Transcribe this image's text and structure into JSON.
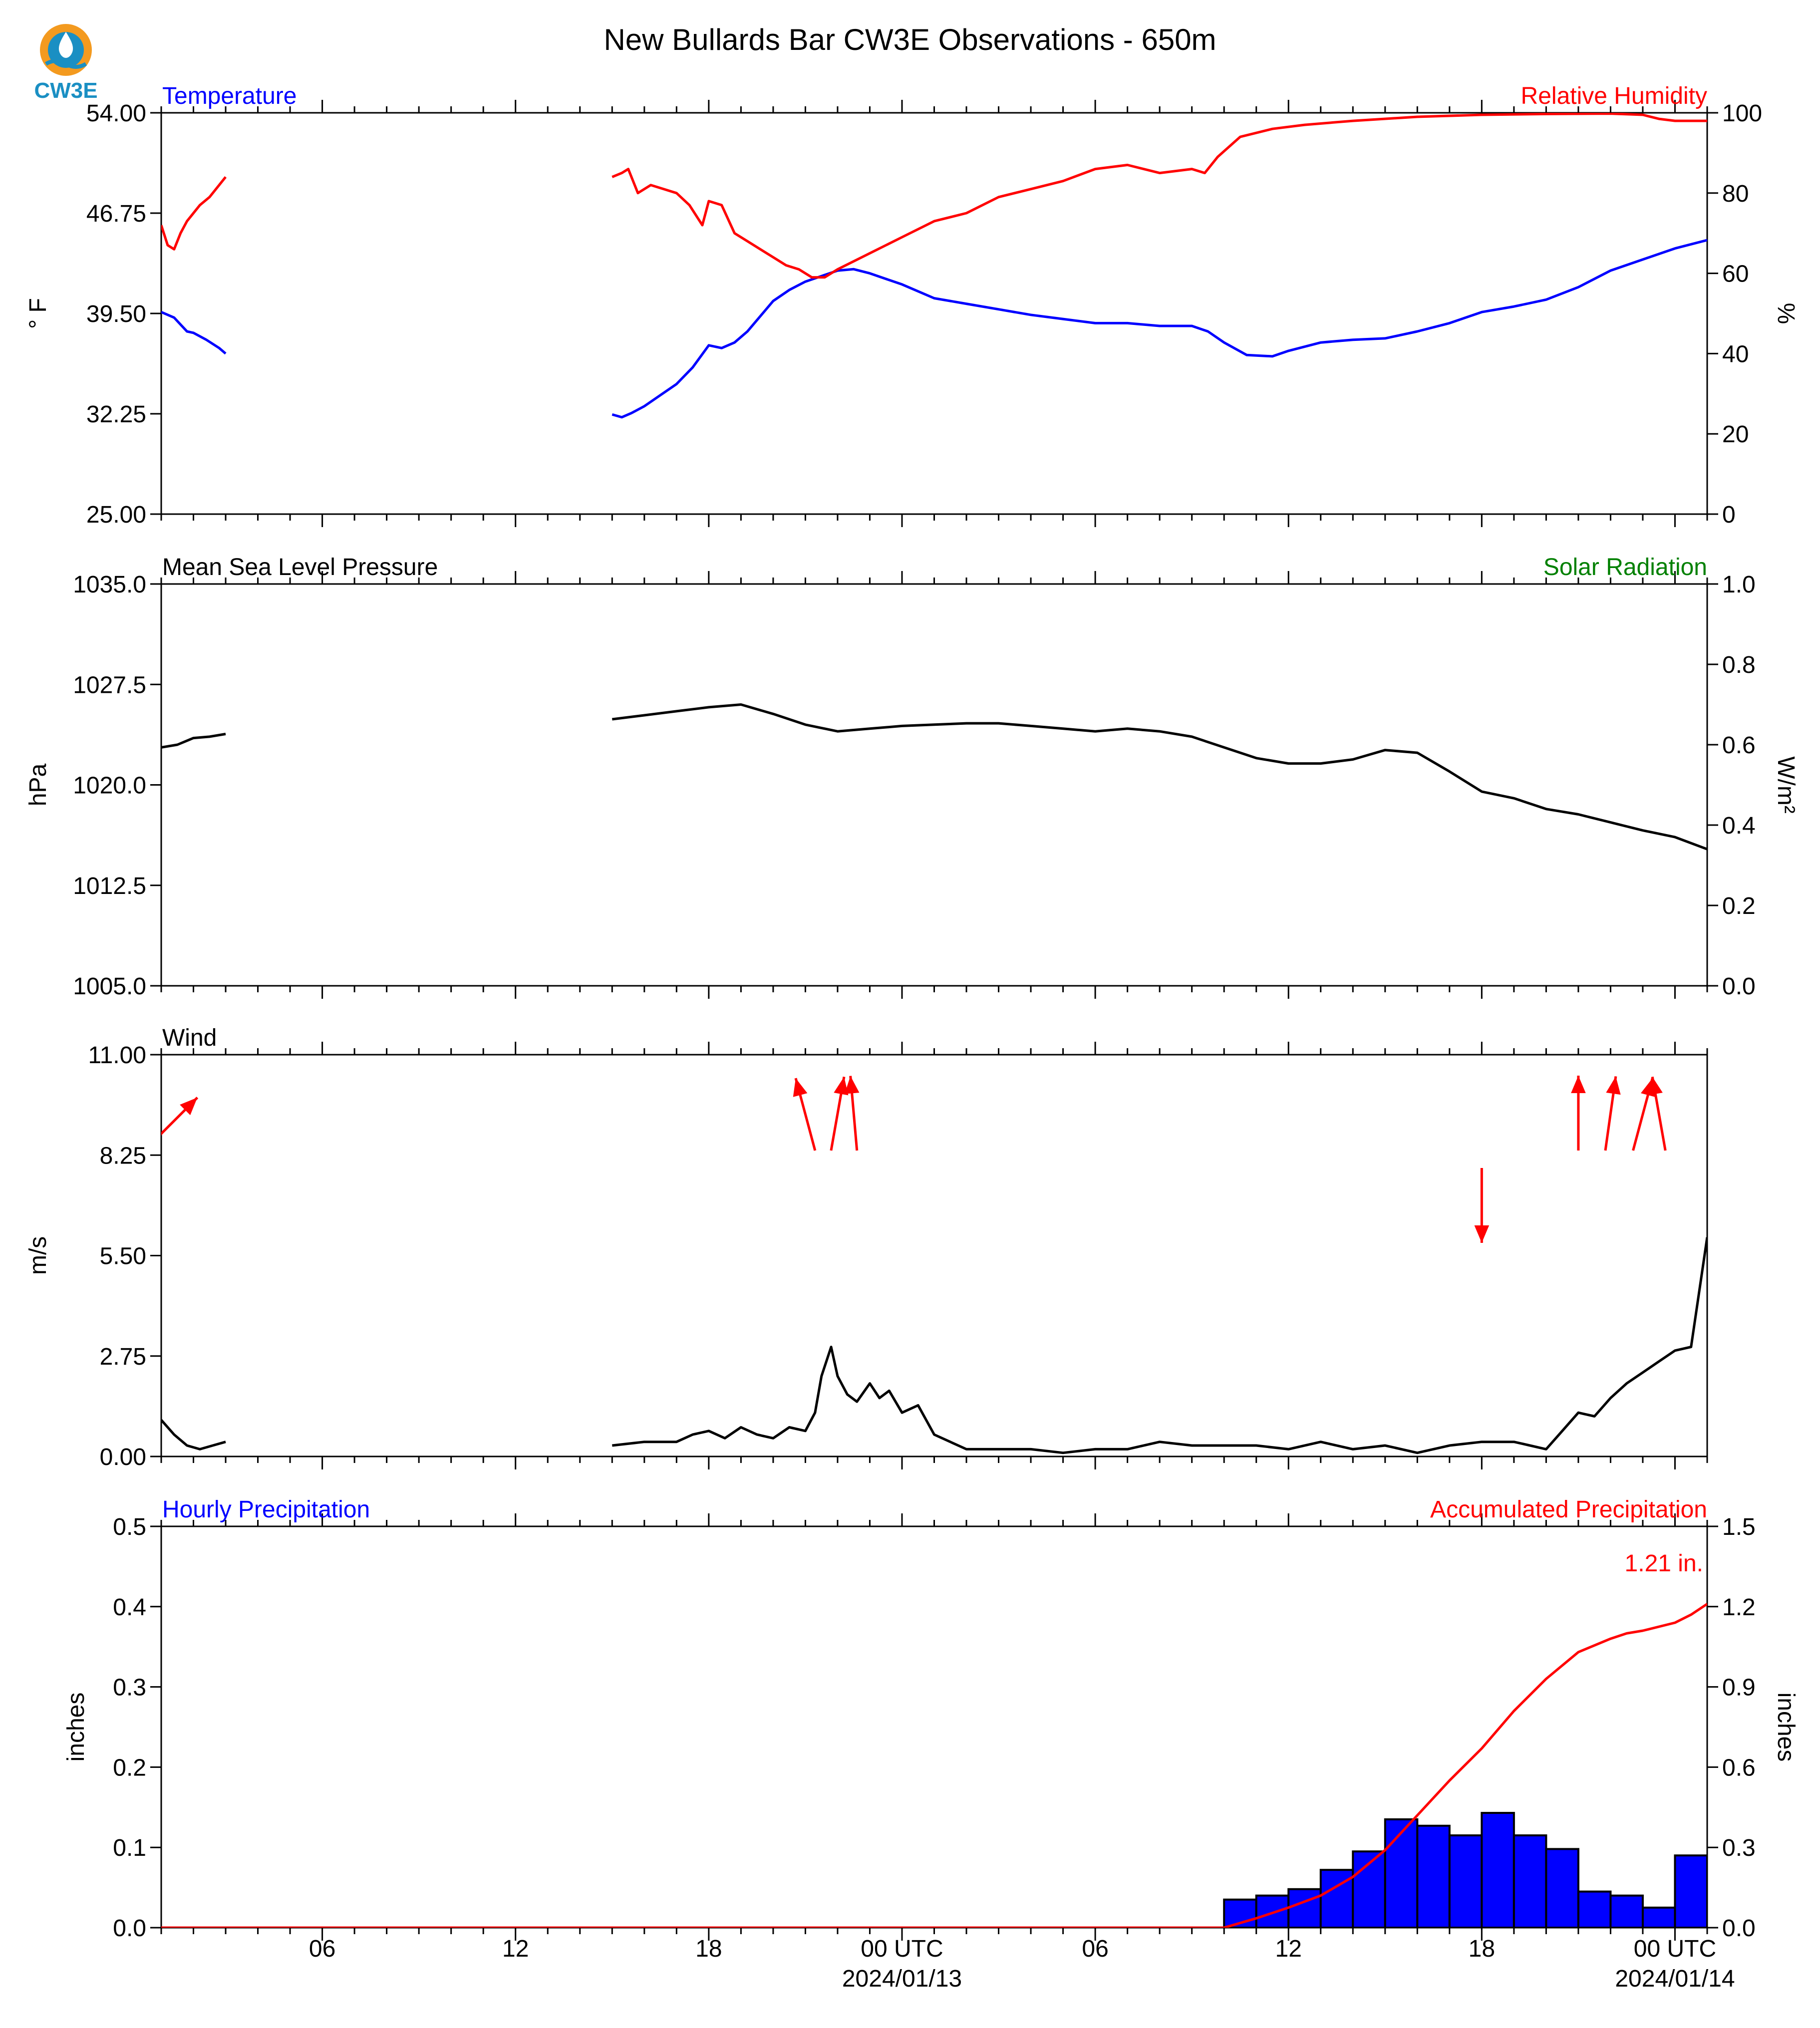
{
  "logo_text": "CW3E",
  "title": "New Bullards Bar CW3E Observations - 650m",
  "time_axis": {
    "ticks": [
      "06",
      "12",
      "18",
      "00 UTC",
      "06",
      "12",
      "18",
      "00 UTC"
    ],
    "dates": [
      "2024/01/13",
      "2024/01/14"
    ]
  },
  "chart_data": [
    {
      "type": "line",
      "panel": "temperature-humidity",
      "left_label": "Temperature",
      "right_label": "Relative Humidity",
      "ylabel": "° F",
      "ylabel_right": "%",
      "ylim": [
        25,
        54
      ],
      "ylim_right": [
        0,
        100
      ],
      "yticks": [
        "54.00",
        "46.75",
        "39.50",
        "32.25",
        "25.00"
      ],
      "yticks_right": [
        "100",
        "80",
        "60",
        "40",
        "20",
        "0"
      ],
      "x_unit": "hours since 00 UTC 2024/01/12",
      "xlim": [
        1,
        49
      ],
      "series": [
        {
          "name": "Temperature",
          "axis": "left",
          "color": "#0000ff",
          "x": [
            1.0,
            1.4,
            1.6,
            1.8,
            2.0,
            2.4,
            2.8,
            3.0,
            15.0,
            15.3,
            15.6,
            16.0,
            16.5,
            17.0,
            17.5,
            18.0,
            18.4,
            18.8,
            19.2,
            19.6,
            20.0,
            20.5,
            21.0,
            21.5,
            22.0,
            22.5,
            23.0,
            23.5,
            24.0,
            25.0,
            26.0,
            27.0,
            28.0,
            29.0,
            30.0,
            31.0,
            32.0,
            33.0,
            33.5,
            34.0,
            34.7,
            35.5,
            36.0,
            37.0,
            38.0,
            39.0,
            40.0,
            41.0,
            42.0,
            43.0,
            44.0,
            45.0,
            46.0,
            47.0,
            48.0,
            49.0
          ],
          "y": [
            39.6,
            39.2,
            38.7,
            38.2,
            38.1,
            37.6,
            37.0,
            36.6,
            32.2,
            32.0,
            32.3,
            32.8,
            33.6,
            34.4,
            35.6,
            37.2,
            37.0,
            37.4,
            38.2,
            39.3,
            40.4,
            41.2,
            41.8,
            42.2,
            42.6,
            42.7,
            42.4,
            42.0,
            41.6,
            40.6,
            40.2,
            39.8,
            39.4,
            39.1,
            38.8,
            38.8,
            38.6,
            38.6,
            38.2,
            37.4,
            36.5,
            36.4,
            36.8,
            37.4,
            37.6,
            37.7,
            38.2,
            38.8,
            39.6,
            40.0,
            40.5,
            41.4,
            42.6,
            43.4,
            44.2,
            44.8
          ]
        },
        {
          "name": "Relative Humidity",
          "axis": "right",
          "color": "#ff0000",
          "x": [
            1.0,
            1.2,
            1.4,
            1.6,
            1.8,
            2.0,
            2.2,
            2.5,
            2.8,
            3.0,
            15.0,
            15.3,
            15.5,
            15.8,
            16.2,
            16.6,
            17.0,
            17.4,
            17.8,
            18.0,
            18.4,
            18.8,
            19.2,
            19.6,
            20.0,
            20.4,
            20.8,
            21.2,
            21.6,
            22.0,
            22.5,
            23.0,
            23.5,
            24.0,
            25.0,
            26.0,
            27.0,
            28.0,
            29.0,
            30.0,
            31.0,
            32.0,
            33.0,
            33.4,
            33.8,
            34.5,
            35.5,
            36.5,
            38.0,
            40.0,
            42.0,
            44.0,
            46.0,
            47.0,
            47.5,
            48.0,
            49.0
          ],
          "y": [
            72.0,
            67.0,
            66.0,
            70.0,
            73.0,
            75.0,
            77.0,
            79.0,
            82.0,
            84.0,
            84.0,
            85.0,
            86.0,
            80.0,
            82.0,
            81.0,
            80.0,
            77.0,
            72.0,
            78.0,
            77.0,
            70.0,
            68.0,
            66.0,
            64.0,
            62.0,
            61.0,
            59.0,
            59.0,
            61.0,
            63.0,
            65.0,
            67.0,
            69.0,
            73.0,
            75.0,
            79.0,
            81.0,
            83.0,
            86.0,
            87.0,
            85.0,
            86.0,
            85.0,
            89.0,
            94.0,
            96.0,
            97.0,
            98.0,
            99.0,
            99.5,
            99.7,
            99.8,
            99.5,
            98.5,
            98.0,
            98.0
          ]
        }
      ]
    },
    {
      "type": "line",
      "panel": "pressure-solar",
      "left_label": "Mean Sea Level Pressure",
      "right_label": "Solar Radiation",
      "ylabel": "hPa",
      "ylabel_right": "W/m²",
      "ylim": [
        1005,
        1035
      ],
      "ylim_right": [
        0,
        1
      ],
      "yticks": [
        "1035.0",
        "1027.5",
        "1020.0",
        "1012.5",
        "1005.0"
      ],
      "yticks_right": [
        "1.0",
        "0.8",
        "0.6",
        "0.4",
        "0.2",
        "0.0"
      ],
      "x_unit": "hours since 00 UTC 2024/01/12",
      "xlim": [
        1,
        49
      ],
      "series": [
        {
          "name": "Mean Sea Level Pressure",
          "axis": "left",
          "color": "#000000",
          "x": [
            1.0,
            1.5,
            2.0,
            2.5,
            3.0,
            15.0,
            16.0,
            17.0,
            18.0,
            19.0,
            20.0,
            21.0,
            22.0,
            23.0,
            24.0,
            25.0,
            26.0,
            27.0,
            28.0,
            29.0,
            30.0,
            31.0,
            32.0,
            33.0,
            34.0,
            35.0,
            36.0,
            37.0,
            38.0,
            39.0,
            40.0,
            41.0,
            42.0,
            43.0,
            44.0,
            45.0,
            46.0,
            47.0,
            48.0,
            49.0
          ],
          "y": [
            1022.8,
            1023.0,
            1023.5,
            1023.6,
            1023.8,
            1024.9,
            1025.2,
            1025.5,
            1025.8,
            1026.0,
            1025.3,
            1024.5,
            1024.0,
            1024.2,
            1024.4,
            1024.5,
            1024.6,
            1024.6,
            1024.4,
            1024.2,
            1024.0,
            1024.2,
            1024.0,
            1023.6,
            1022.8,
            1022.0,
            1021.6,
            1021.6,
            1021.9,
            1022.6,
            1022.4,
            1021.0,
            1019.5,
            1019.0,
            1018.2,
            1017.8,
            1017.2,
            1016.6,
            1016.1,
            1015.2
          ]
        }
      ]
    },
    {
      "type": "line",
      "panel": "wind",
      "left_label": "Wind",
      "ylabel": "m/s",
      "ylim": [
        0,
        11
      ],
      "yticks": [
        "11.00",
        "8.25",
        "5.50",
        "2.75",
        "0.00"
      ],
      "x_unit": "hours since 00 UTC 2024/01/12",
      "xlim": [
        1,
        49
      ],
      "series": [
        {
          "name": "Wind",
          "axis": "left",
          "color": "#000000",
          "x": [
            1.0,
            1.4,
            1.8,
            2.2,
            2.6,
            3.0,
            15.0,
            16.0,
            17.0,
            17.5,
            18.0,
            18.5,
            19.0,
            19.5,
            20.0,
            20.5,
            21.0,
            21.3,
            21.5,
            21.8,
            22.0,
            22.3,
            22.6,
            23.0,
            23.3,
            23.6,
            24.0,
            24.5,
            25.0,
            26.0,
            27.0,
            28.0,
            29.0,
            30.0,
            31.0,
            32.0,
            33.0,
            34.0,
            35.0,
            36.0,
            37.0,
            38.0,
            39.0,
            40.0,
            41.0,
            42.0,
            43.0,
            43.5,
            44.0,
            44.5,
            45.0,
            45.5,
            46.0,
            46.5,
            47.0,
            47.5,
            48.0,
            48.5,
            49.0
          ],
          "y": [
            1.0,
            0.6,
            0.3,
            0.2,
            0.3,
            0.4,
            0.3,
            0.4,
            0.4,
            0.6,
            0.7,
            0.5,
            0.8,
            0.6,
            0.5,
            0.8,
            0.7,
            1.2,
            2.2,
            3.0,
            2.2,
            1.7,
            1.5,
            2.0,
            1.6,
            1.8,
            1.2,
            1.4,
            0.6,
            0.2,
            0.2,
            0.2,
            0.1,
            0.2,
            0.2,
            0.4,
            0.3,
            0.3,
            0.3,
            0.2,
            0.4,
            0.2,
            0.3,
            0.1,
            0.3,
            0.4,
            0.4,
            0.3,
            0.2,
            0.7,
            1.2,
            1.1,
            1.6,
            2.0,
            2.3,
            2.6,
            2.9,
            3.0,
            6.0
          ]
        }
      ],
      "wind_direction_arrows": {
        "color": "#ff0000",
        "x": [
          1.3,
          21.0,
          22.0,
          22.5,
          42.0,
          45.0,
          46.0,
          47.0,
          47.5
        ],
        "direction_to_deg": [
          45,
          -15,
          10,
          -5,
          180,
          0,
          8,
          15,
          -10
        ]
      }
    },
    {
      "type": "bar",
      "panel": "precipitation",
      "left_label": "Hourly Precipitation",
      "right_label": "Accumulated Precipitation",
      "ylabel": "inches",
      "ylabel_right": "inches",
      "ylim": [
        0,
        0.5
      ],
      "ylim_right": [
        0,
        1.5
      ],
      "yticks": [
        "0.5",
        "0.4",
        "0.3",
        "0.2",
        "0.1",
        "0.0"
      ],
      "yticks_right": [
        "1.5",
        "1.2",
        "0.9",
        "0.6",
        "0.3",
        "0.0"
      ],
      "x_unit": "hours since 00 UTC 2024/01/12",
      "xlim": [
        1,
        49
      ],
      "total_label": "1.21 in.",
      "series": [
        {
          "name": "Hourly Precipitation",
          "axis": "left",
          "color": "#0000ff",
          "x": [
            35,
            36,
            37,
            38,
            39,
            40,
            41,
            42,
            43,
            44,
            45,
            46,
            47,
            48,
            49
          ],
          "values": [
            0.035,
            0.04,
            0.048,
            0.072,
            0.095,
            0.135,
            0.127,
            0.115,
            0.143,
            0.115,
            0.098,
            0.045,
            0.04,
            0.025,
            0.09
          ]
        },
        {
          "name": "Accumulated Precipitation",
          "axis": "right",
          "color": "#ff0000",
          "x": [
            1,
            34.0,
            35.0,
            36.0,
            37.0,
            38.0,
            39.0,
            40.0,
            41.0,
            42.0,
            43.0,
            44.0,
            45.0,
            46.0,
            46.5,
            47.0,
            48.0,
            48.5,
            49.0
          ],
          "y": [
            0,
            0,
            0.035,
            0.075,
            0.12,
            0.19,
            0.29,
            0.42,
            0.55,
            0.67,
            0.81,
            0.93,
            1.03,
            1.08,
            1.1,
            1.11,
            1.14,
            1.17,
            1.21
          ]
        }
      ]
    }
  ]
}
